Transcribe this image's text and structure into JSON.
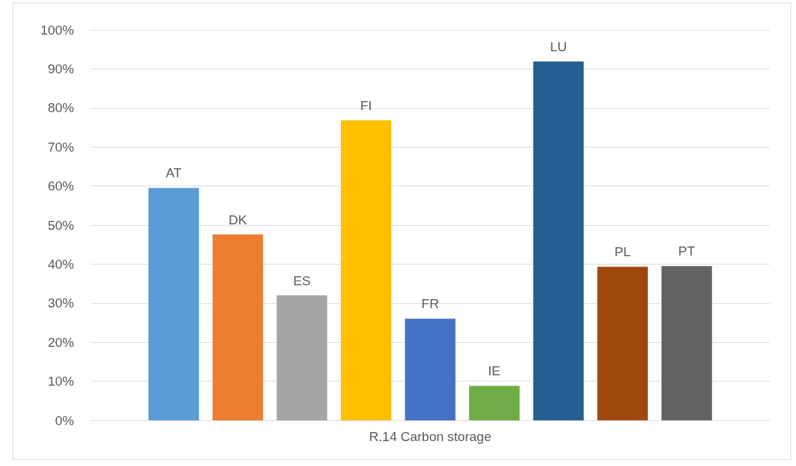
{
  "chart_data": {
    "type": "bar",
    "categories": [
      "R.14 Carbon storage"
    ],
    "series": [
      {
        "name": "AT",
        "color": "#5b9bd5",
        "values": [
          59.5
        ]
      },
      {
        "name": "DK",
        "color": "#ed7d31",
        "values": [
          47.6
        ]
      },
      {
        "name": "ES",
        "color": "#a5a5a5",
        "values": [
          32.0
        ]
      },
      {
        "name": "FI",
        "color": "#ffc000",
        "values": [
          76.8
        ]
      },
      {
        "name": "FR",
        "color": "#4472c4",
        "values": [
          26.0
        ]
      },
      {
        "name": "IE",
        "color": "#70ad47",
        "values": [
          8.8
        ]
      },
      {
        "name": "LU",
        "color": "#255e91",
        "values": [
          91.9
        ]
      },
      {
        "name": "PL",
        "color": "#9e480e",
        "values": [
          39.3
        ]
      },
      {
        "name": "PT",
        "color": "#636363",
        "values": [
          39.5
        ]
      }
    ],
    "ylim": [
      0,
      100
    ],
    "yticks": [
      {
        "value": 0,
        "label": "0%"
      },
      {
        "value": 10,
        "label": "10%"
      },
      {
        "value": 20,
        "label": "20%"
      },
      {
        "value": 30,
        "label": "30%"
      },
      {
        "value": 40,
        "label": "40%"
      },
      {
        "value": 50,
        "label": "50%"
      },
      {
        "value": 60,
        "label": "60%"
      },
      {
        "value": 70,
        "label": "70%"
      },
      {
        "value": 80,
        "label": "80%"
      },
      {
        "value": 90,
        "label": "90%"
      },
      {
        "value": 100,
        "label": "100%"
      }
    ],
    "grid": "y",
    "legend": false
  }
}
